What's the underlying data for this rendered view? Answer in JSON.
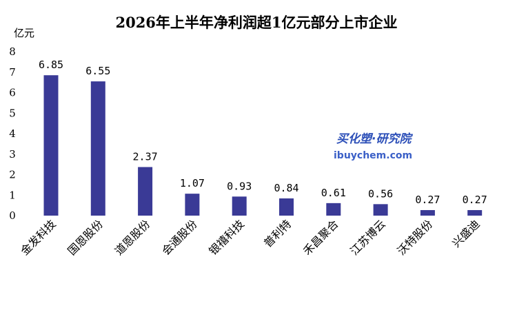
{
  "chart_data": {
    "type": "bar",
    "title": "2026年上半年净利润超1亿元部分上市企业",
    "ylabel": "亿元",
    "xlabel": "",
    "ylim": [
      0,
      8
    ],
    "yticks": [
      0,
      1,
      2,
      3,
      4,
      5,
      6,
      7,
      8
    ],
    "grid": false,
    "bar_color": "#3a3a96",
    "categories": [
      "金发科技",
      "国恩股份",
      "道恩股份",
      "会通股份",
      "银禧科技",
      "普利特",
      "禾昌聚合",
      "江苏博云",
      "沃特股份",
      "兴盛迪"
    ],
    "values": [
      6.85,
      6.55,
      2.37,
      1.07,
      0.93,
      0.84,
      0.61,
      0.56,
      0.27,
      0.27
    ],
    "value_labels": [
      "6.85",
      "6.55",
      "2.37",
      "1.07",
      "0.93",
      "0.84",
      "0.61",
      "0.56",
      "0.27",
      "0.27"
    ]
  },
  "watermark": {
    "brand_cn": "买化塑·研究院",
    "brand_en": "ibuychem.com"
  }
}
